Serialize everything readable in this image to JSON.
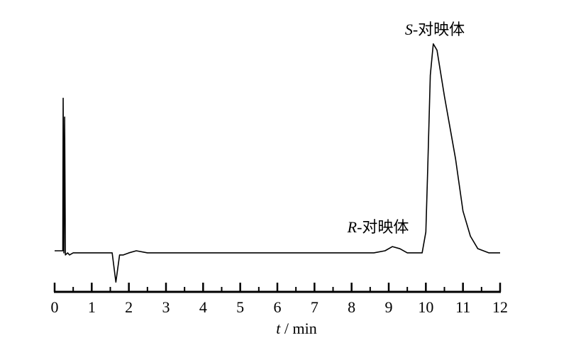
{
  "chart_data": {
    "type": "line",
    "xlabel_italic": "t",
    "xlabel": " / min",
    "annotations": [
      {
        "italic": "R",
        "text": "-对映体"
      },
      {
        "italic": "S",
        "text": "-对映体"
      }
    ],
    "xlim": [
      0,
      12
    ],
    "xticks": [
      0,
      1,
      2,
      3,
      4,
      5,
      6,
      7,
      8,
      9,
      10,
      11,
      12
    ],
    "xminorticks": [
      0.5,
      1.5,
      2.5,
      3.5,
      4.5,
      5.5,
      6.5,
      7.5,
      8.5,
      9.5,
      10.5,
      11.5
    ],
    "ylim": [
      -19,
      101
    ],
    "series": [
      {
        "color": "#000000",
        "x": [
          0,
          0.22,
          0.23,
          0.25,
          0.27,
          0.29,
          0.35,
          0.4,
          0.5,
          1.0,
          1.55,
          1.65,
          1.75,
          1.85,
          2.0,
          2.2,
          2.5,
          4.0,
          6.0,
          8.6,
          8.9,
          9.1,
          9.3,
          9.5,
          9.9,
          10.0,
          10.05,
          10.12,
          10.2,
          10.3,
          10.5,
          10.8,
          11.0,
          11.2,
          11.4,
          11.7,
          12
        ],
        "values": [
          1,
          1,
          74,
          0,
          65,
          -1,
          0,
          -1,
          0,
          0,
          0,
          -14,
          -1,
          -1,
          0,
          1,
          0,
          0,
          0,
          0,
          1,
          3,
          2,
          0,
          0,
          10,
          40,
          85,
          100,
          97,
          75,
          45,
          20,
          8,
          2,
          0,
          0
        ]
      }
    ]
  }
}
